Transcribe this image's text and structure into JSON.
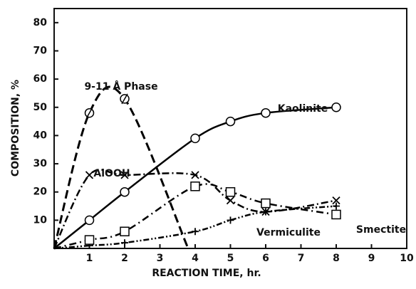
{
  "chart_data": {
    "type": "line",
    "xlabel": "REACTION TIME,  hr.",
    "ylabel": "COMPOSITION,   %",
    "xlim": [
      0,
      10
    ],
    "xticks": [
      1,
      2,
      3,
      4,
      5,
      6,
      7,
      8,
      9,
      10
    ],
    "ylim": [
      0,
      85
    ],
    "yticks": [
      10,
      20,
      30,
      40,
      50,
      60,
      70,
      80
    ],
    "series": [
      {
        "name": "Kaolinite",
        "color": "#000000",
        "x": [
          0,
          1,
          2,
          4,
          5,
          6,
          8
        ],
        "values": [
          0,
          10,
          20,
          39,
          45,
          48,
          50
        ]
      },
      {
        "name": "9-11 Å Phase",
        "color": "#000000",
        "x": [
          0,
          1,
          2,
          3.8
        ],
        "values": [
          0,
          48,
          53,
          0
        ]
      },
      {
        "name": "AlOOH",
        "color": "#000000",
        "x": [
          0,
          1,
          2,
          4,
          5,
          6,
          8
        ],
        "values": [
          0,
          26,
          26,
          26,
          17,
          13,
          17
        ]
      },
      {
        "name": "Vermiculite",
        "color": "#000000",
        "x": [
          0,
          1,
          2,
          4,
          5,
          6,
          8
        ],
        "values": [
          0,
          1,
          2,
          6,
          10,
          13,
          15
        ]
      },
      {
        "name": "Smectite",
        "color": "#000000",
        "x": [
          0,
          1,
          2,
          4,
          5,
          6,
          8
        ],
        "values": [
          0,
          3,
          6,
          22,
          20,
          16,
          12
        ]
      }
    ]
  }
}
